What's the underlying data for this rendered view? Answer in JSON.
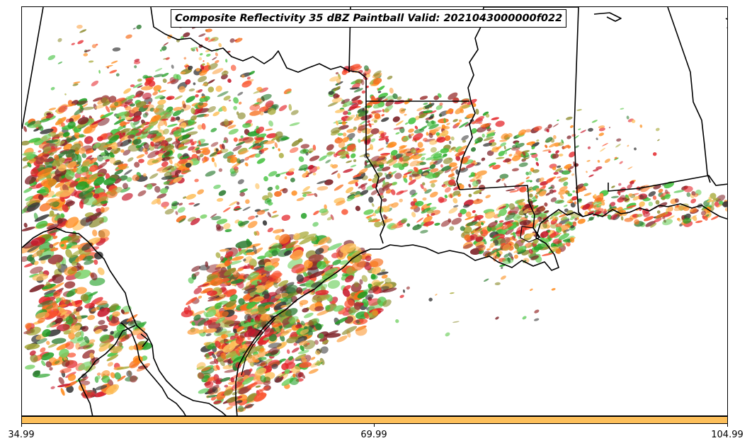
{
  "title": "Composite Reflectivity 35 dBZ Paintball Valid: 2021043000000f022",
  "colorbar": {
    "color": "#fdbf5a",
    "ticks": [
      "34.99",
      "69.99",
      "104.99"
    ]
  },
  "palette": [
    "#c7182b",
    "#e4252a",
    "#f9502e",
    "#f66e1d",
    "#ff8a1a",
    "#fca346",
    "#fdbf5a",
    "#a8aa3b",
    "#8b8a2b",
    "#1e9e22",
    "#3fc03a",
    "#6ecf5d",
    "#2e7d32",
    "#7b1e24",
    "#9e3b3b",
    "#383838"
  ]
}
